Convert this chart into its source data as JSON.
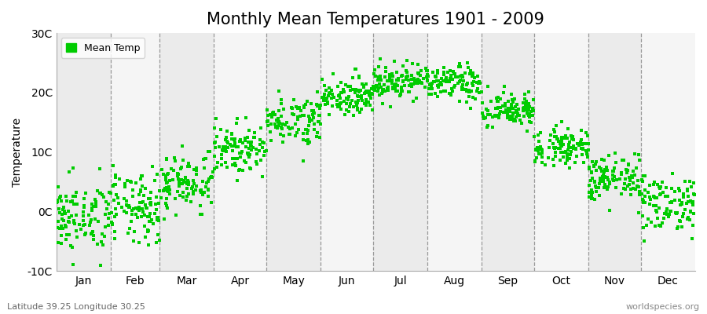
{
  "title": "Monthly Mean Temperatures 1901 - 2009",
  "ylabel": "Temperature",
  "xlabel_bottom_left": "Latitude 39.25 Longitude 30.25",
  "xlabel_bottom_right": "worldspecies.org",
  "legend_label": "Mean Temp",
  "marker_color": "#00cc00",
  "background_color_odd": "#ebebeb",
  "background_color_even": "#f5f5f5",
  "ylim": [
    -10,
    30
  ],
  "yticks": [
    -10,
    0,
    10,
    20,
    30
  ],
  "ytick_labels": [
    "-10C",
    "0C",
    "10C",
    "20C",
    "30C"
  ],
  "months": [
    "Jan",
    "Feb",
    "Mar",
    "Apr",
    "May",
    "Jun",
    "Jul",
    "Aug",
    "Sep",
    "Oct",
    "Nov",
    "Dec"
  ],
  "month_means": [
    -1.0,
    0.5,
    5.0,
    10.5,
    15.5,
    19.5,
    22.0,
    21.5,
    17.0,
    11.0,
    5.5,
    1.5
  ],
  "month_stds": [
    3.0,
    3.0,
    2.5,
    2.0,
    2.0,
    1.5,
    1.5,
    1.5,
    1.5,
    1.5,
    2.0,
    2.5
  ],
  "n_years": 109,
  "random_seed": 42,
  "marker_size": 8,
  "title_fontsize": 15,
  "axis_fontsize": 10,
  "tick_fontsize": 10,
  "dpi": 100,
  "fig_width": 9.0,
  "fig_height": 4.0
}
